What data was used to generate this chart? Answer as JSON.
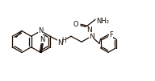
{
  "bg": "#ffffff",
  "lc": "#1a0a00",
  "lw": 0.9,
  "figsize": [
    1.92,
    1.01
  ],
  "dpi": 100,
  "xlim": [
    0,
    192
  ],
  "ylim": [
    0,
    101
  ]
}
